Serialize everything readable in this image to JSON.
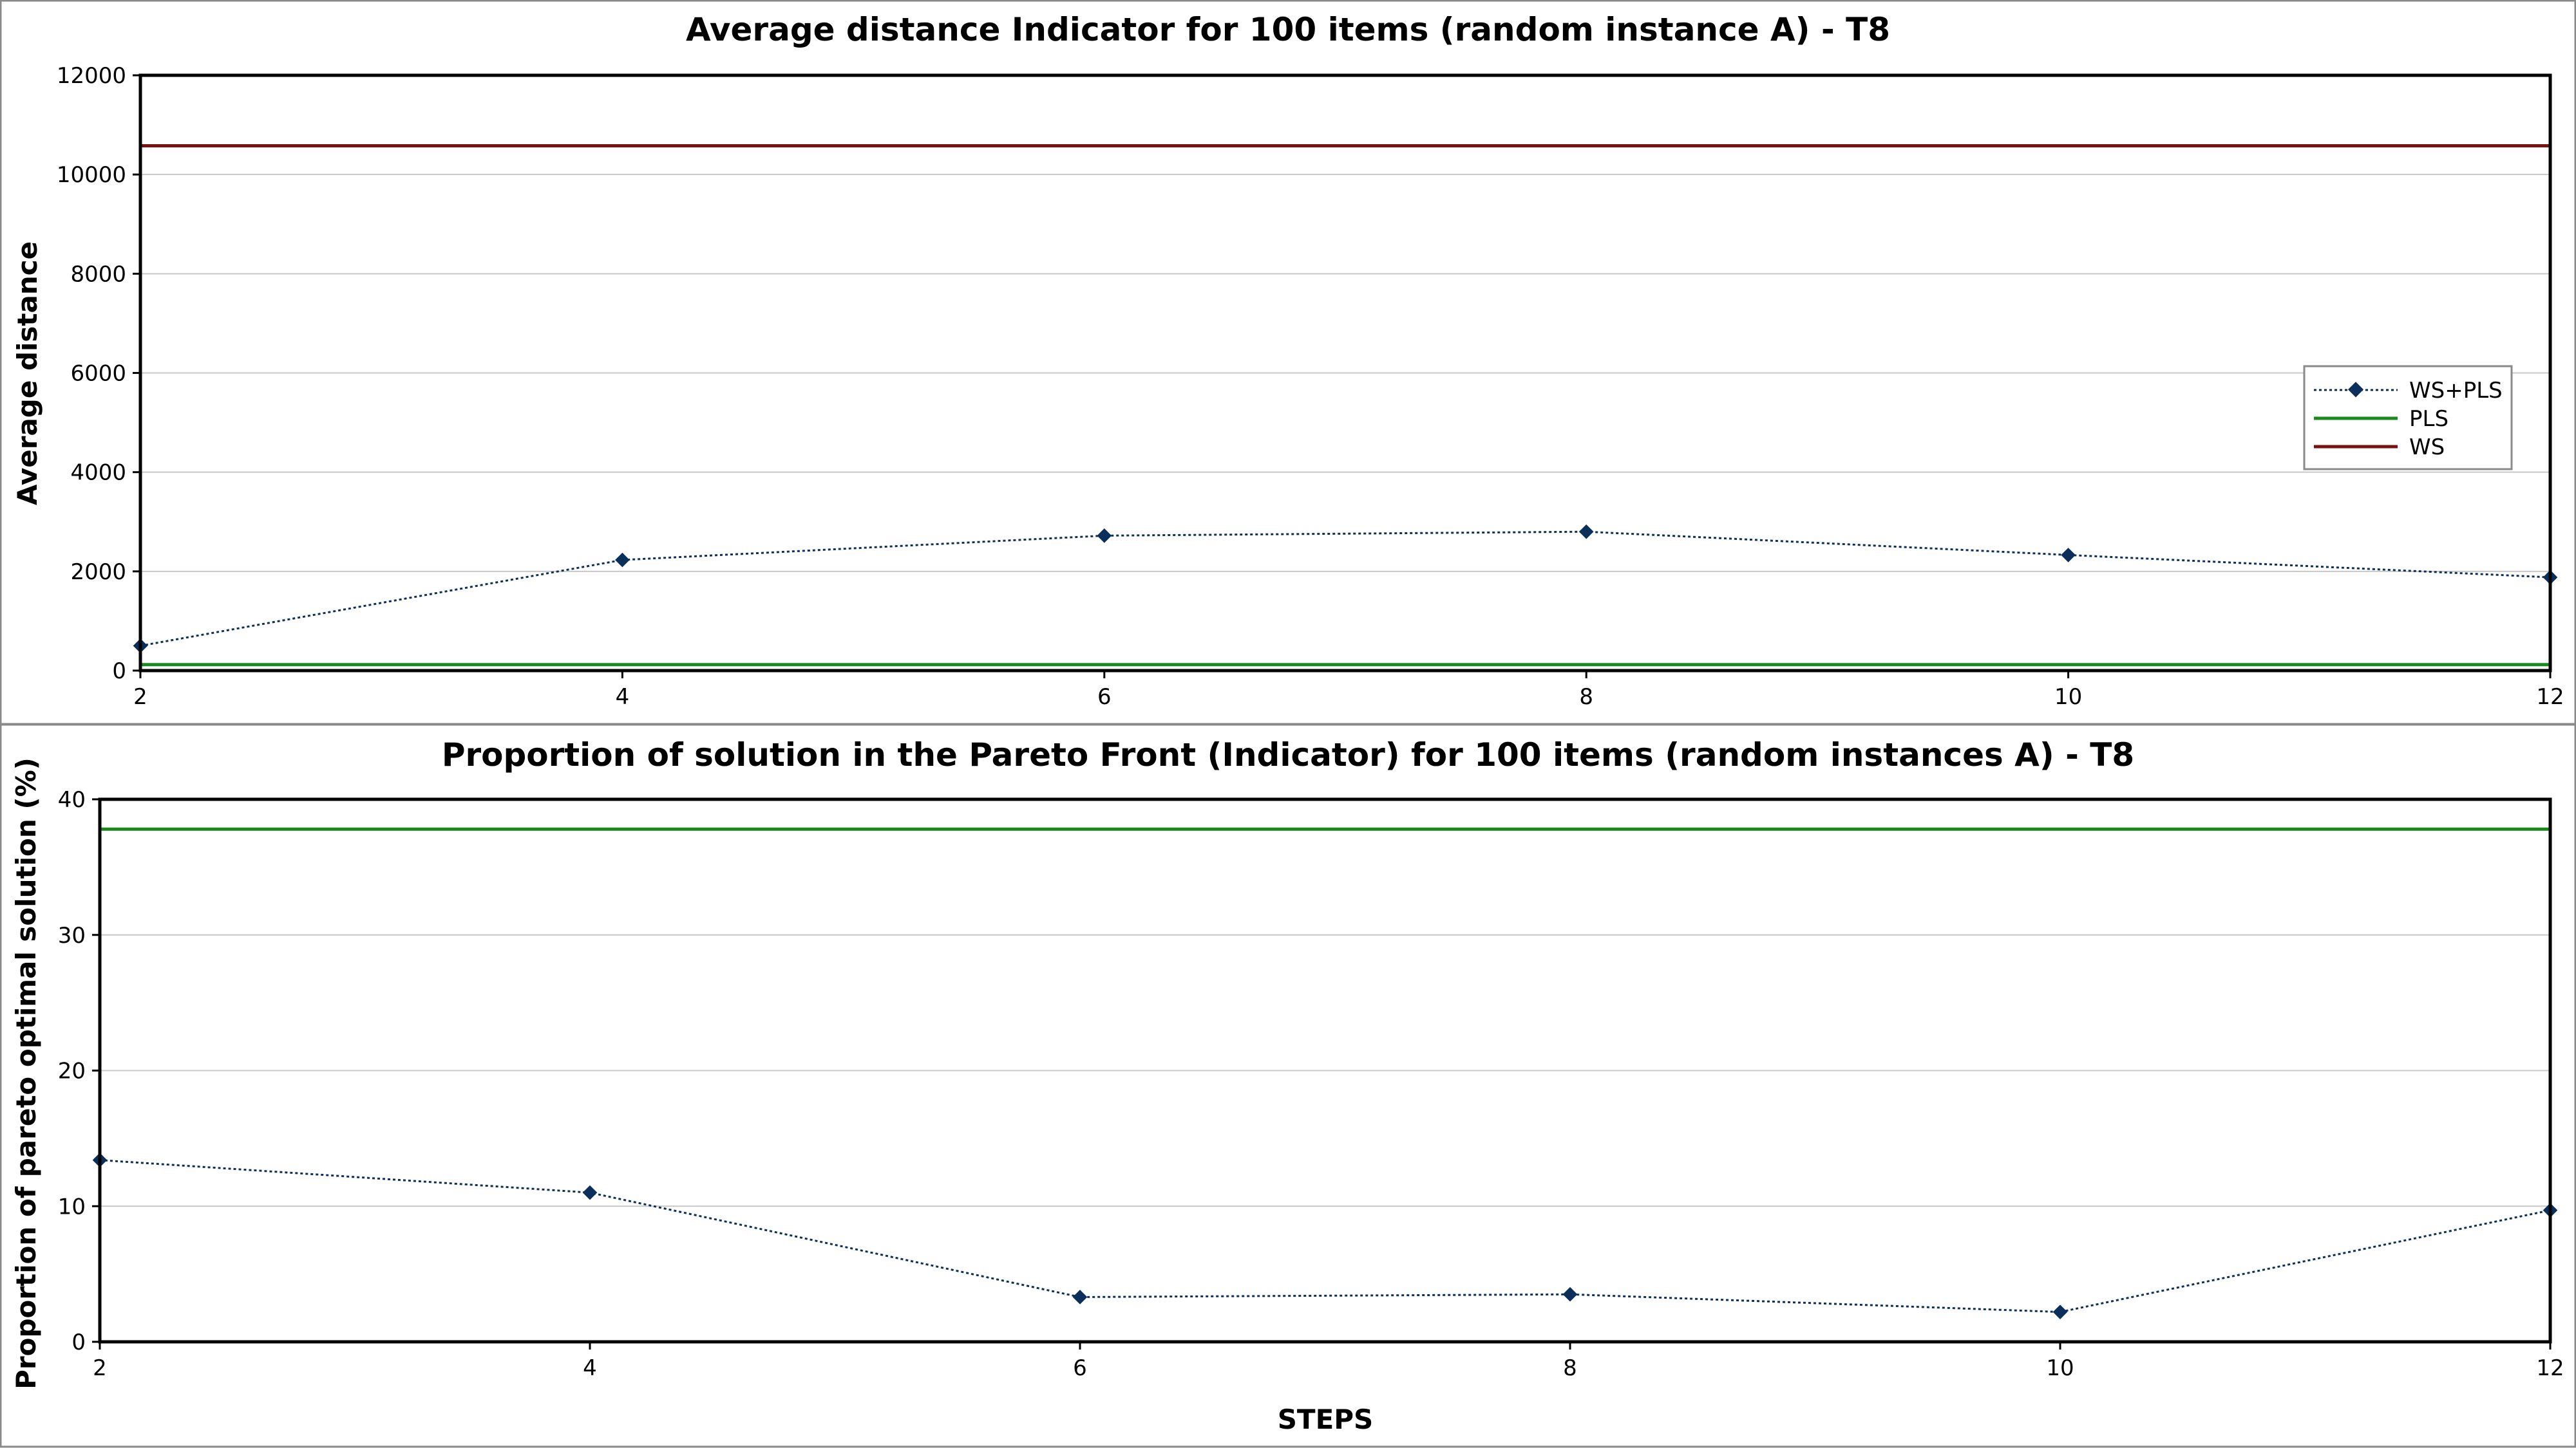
{
  "colors": {
    "ws_pls": "#0b2f5b",
    "pls": "#1a8a1a",
    "ws": "#7a1010",
    "grid": "#c8c8c8",
    "frame": "#000000"
  },
  "chart_data": [
    {
      "type": "line",
      "title": "Average distance Indicator for 100 items (random instance A) - T8",
      "xlabel": "",
      "ylabel": "Average distance",
      "x": [
        2,
        4,
        6,
        8,
        10,
        12
      ],
      "xticks": [
        "2",
        "4",
        "6",
        "8",
        "10",
        "12"
      ],
      "xlim": [
        2,
        12
      ],
      "ylim": [
        0,
        12000
      ],
      "yticks": [
        "0",
        "2000",
        "4000",
        "6000",
        "8000",
        "10000",
        "12000"
      ],
      "grid": true,
      "legend": {
        "placement": "right",
        "entries": [
          "WS+PLS",
          "PLS",
          "WS"
        ]
      },
      "series": [
        {
          "name": "WS+PLS",
          "style": "dotted-marker",
          "values": [
            500,
            2230,
            2720,
            2800,
            2330,
            1880
          ]
        },
        {
          "name": "PLS",
          "style": "solid",
          "values": [
            120,
            120,
            120,
            120,
            120,
            120
          ]
        },
        {
          "name": "WS",
          "style": "solid",
          "values": [
            10580,
            10580,
            10580,
            10580,
            10580,
            10580
          ]
        }
      ]
    },
    {
      "type": "line",
      "title": "Proportion of solution in the Pareto Front  (Indicator) for 100 items (random instances A) - T8",
      "xlabel": "STEPS",
      "ylabel": "Proportion of pareto optimal solution  (%)",
      "x": [
        2,
        4,
        6,
        8,
        10,
        12
      ],
      "xticks": [
        "2",
        "4",
        "6",
        "8",
        "10",
        "12"
      ],
      "xlim": [
        2,
        12
      ],
      "ylim": [
        0,
        40
      ],
      "yticks": [
        "0",
        "10",
        "20",
        "30",
        "40"
      ],
      "grid": true,
      "legend": null,
      "series": [
        {
          "name": "WS+PLS",
          "style": "dotted-marker",
          "values": [
            13.4,
            11.0,
            3.3,
            3.5,
            2.2,
            9.7
          ]
        },
        {
          "name": "PLS",
          "style": "solid",
          "values": [
            37.8,
            37.8,
            37.8,
            37.8,
            37.8,
            37.8
          ]
        },
        {
          "name": "WS",
          "style": "solid",
          "values": [
            0,
            0,
            0,
            0,
            0,
            0
          ]
        }
      ]
    }
  ]
}
